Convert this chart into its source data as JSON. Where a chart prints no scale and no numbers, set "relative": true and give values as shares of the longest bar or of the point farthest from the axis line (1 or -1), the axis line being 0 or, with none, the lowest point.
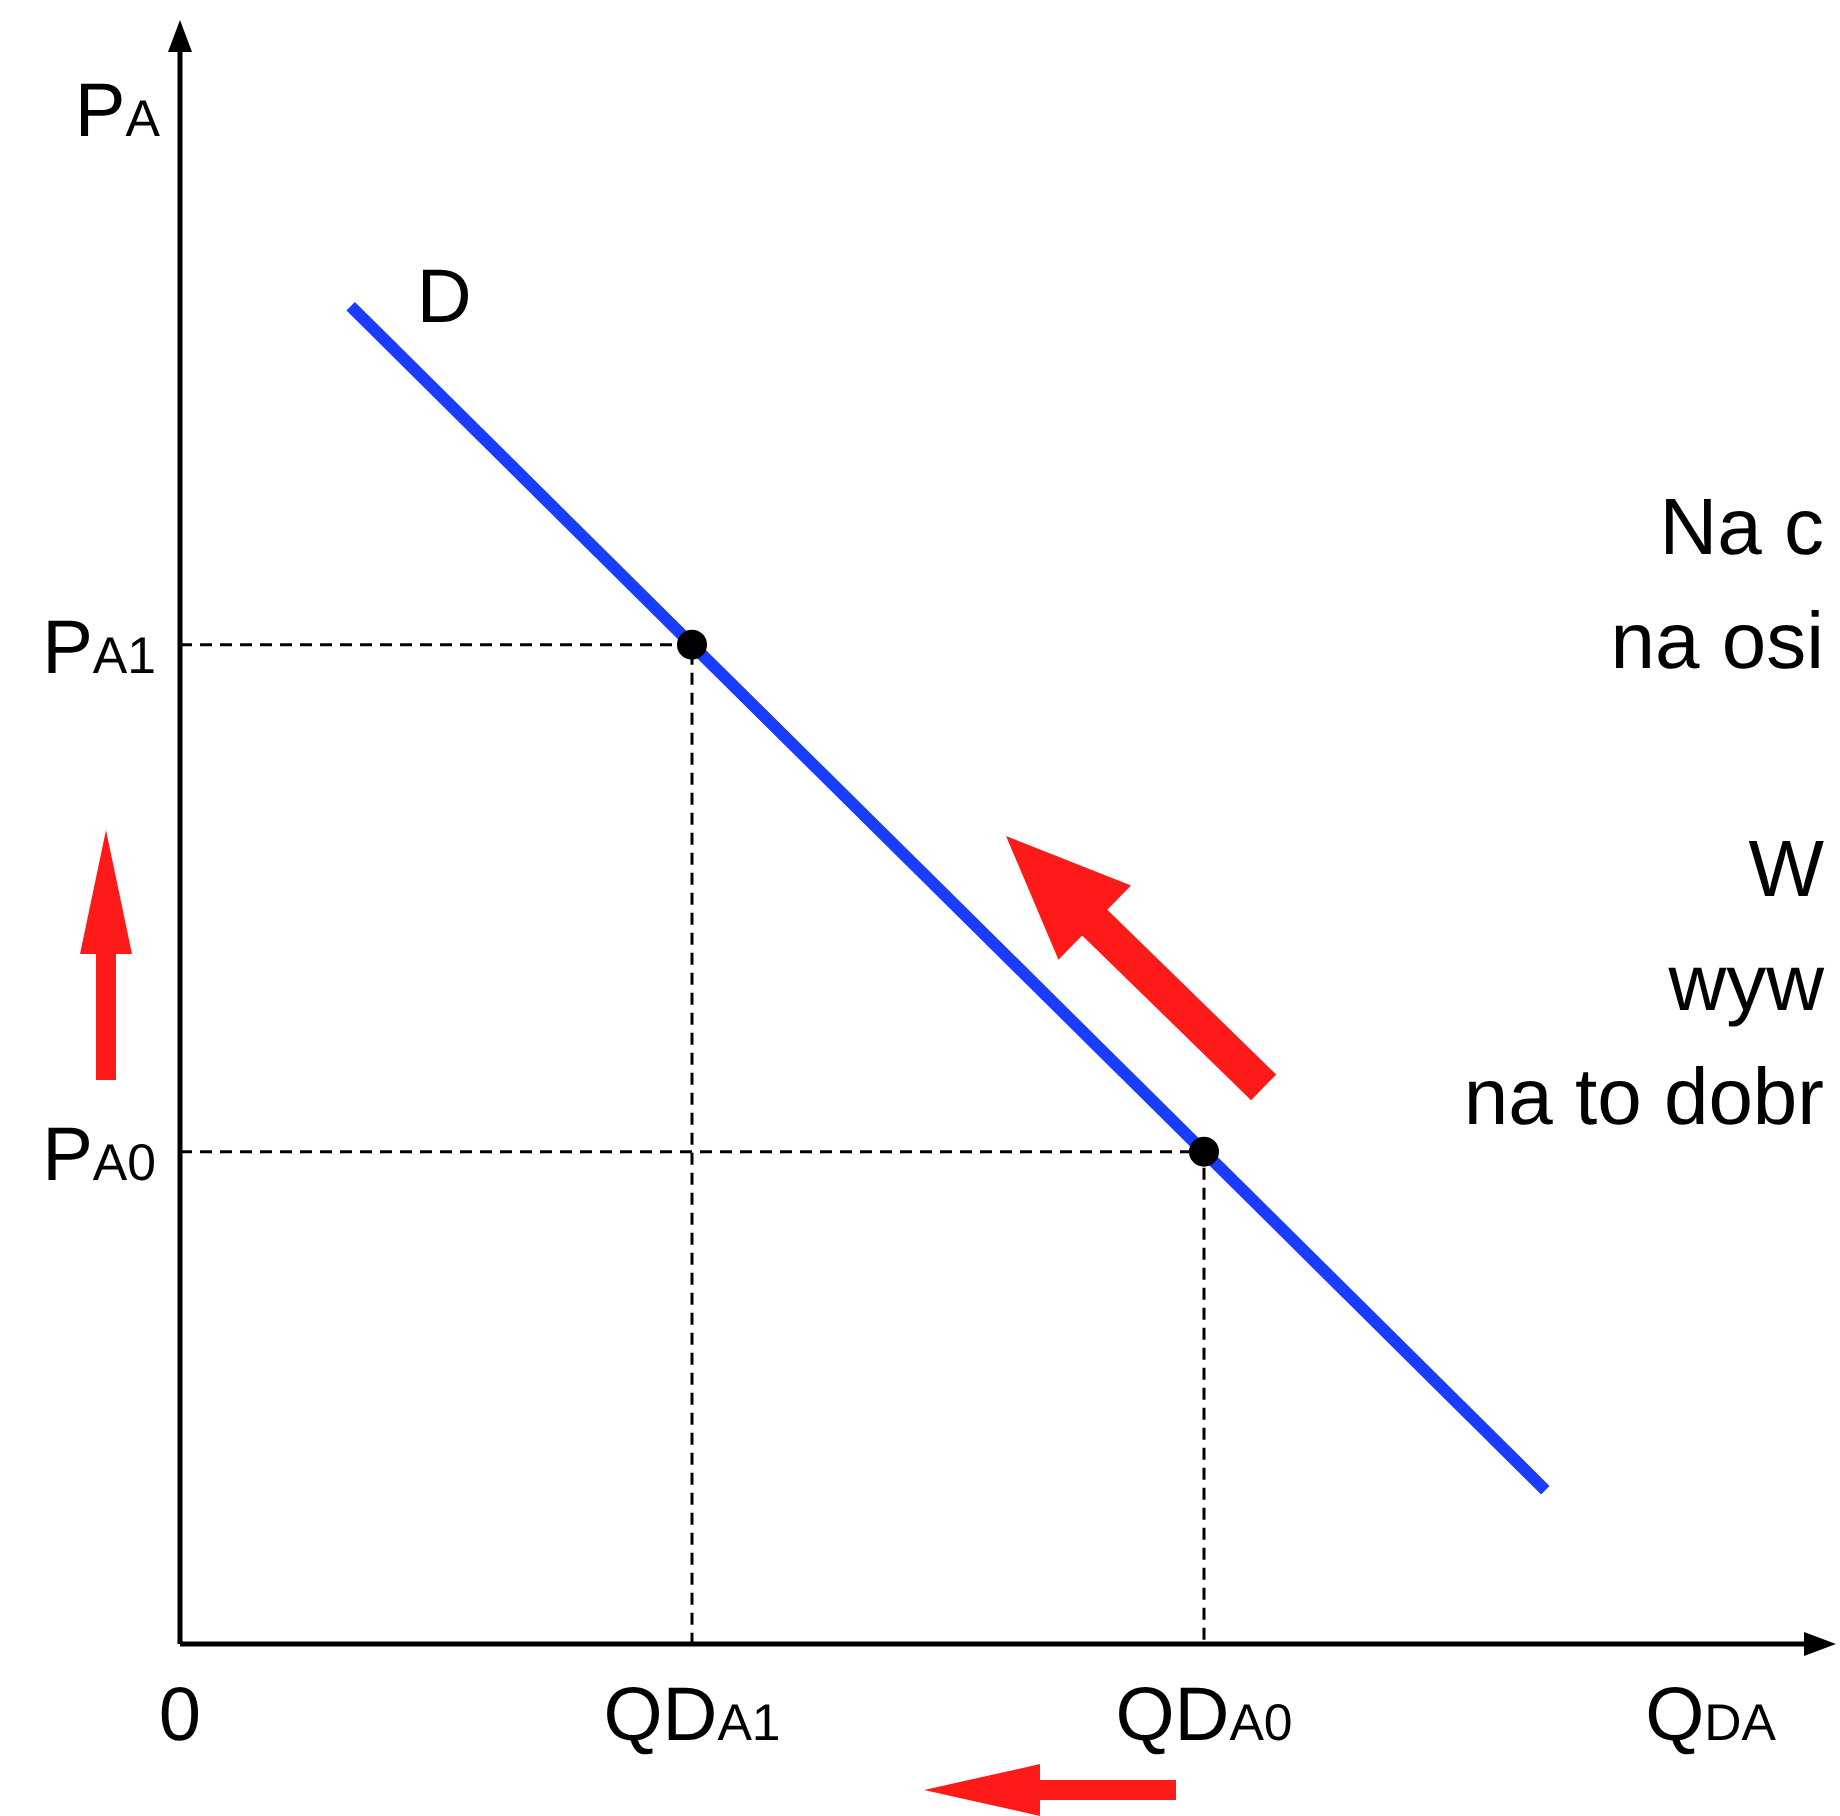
{
  "chart_data": {
    "type": "line",
    "relative": true,
    "xlabel": "Q$_{DA}$",
    "ylabel": "P$_{A}$",
    "categories": [
      "0",
      null,
      null,
      "QD$_{A1}$",
      null,
      null,
      "QD$_{A0}$",
      null,
      null,
      null
    ],
    "series": [
      {
        "name": "D",
        "type": "line",
        "color": "#1a3cff",
        "values": [
          null,
          1,
          null,
          0.747,
          null,
          null,
          0.368,
          null,
          0.115,
          null
        ]
      },
      {
        "type": "scatter",
        "marker": "circle",
        "color": "#000000",
        "x": [
          "QD$_{A1}$",
          "QD$_{A0}$"
        ],
        "values": [
          0.747,
          0.368
        ]
      }
    ],
    "annotations": [
      "P$_{A1}$",
      "P$_{A0}$",
      "Na c\nna osi\n\nW\nwyw\nna to dobr"
    ],
    "legend": false
  }
}
